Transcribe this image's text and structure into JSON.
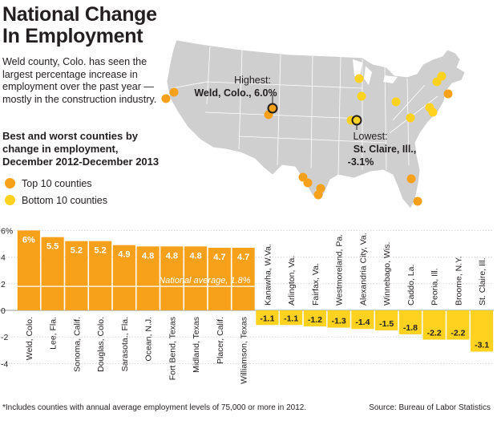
{
  "header": {
    "title_line1": "National Change",
    "title_line2": "In Employment",
    "intro": "Weld county, Colo. has seen the largest percentage increase in employment over the past year —mostly in the construction industry.",
    "subhead": "Best and worst counties by change in employment, December 2012-December 2013"
  },
  "legend": {
    "top_label": "Top 10 counties",
    "bottom_label": "Bottom 10 counties"
  },
  "map": {
    "highest_label": "Highest:",
    "highest_name": "Weld, Colo., 6.0%",
    "lowest_label": "Lowest:",
    "lowest_name": "St. Claire, Ill.,",
    "lowest_value": "-3.1%"
  },
  "colors": {
    "top": "#f7a11a",
    "bottom": "#ffd21f",
    "map_land": "#cfcfcf",
    "map_border": "#ffffff",
    "bar_text": "#ffffff"
  },
  "chart_data": {
    "type": "bar",
    "categories": [
      "Weld, Colo.",
      "Lee, Fla.",
      "Sonoma, Calif.",
      "Douglas, Colo.",
      "Sarasota., Fla.",
      "Ocean, N.J.",
      "Fort Bend, Texas",
      "Midland, Texas",
      "Placer, Calif.",
      "Williamson, Texas",
      "Kanawha, W.Va.",
      "Arlington, Va.",
      "Fairfax, Va.",
      "Westmoreland, Pa.",
      "Alexandria City, Va.",
      "Winnebago, Wis.",
      "Caddo, La.",
      "Peoria, Ill.",
      "Broome, N.Y.",
      "St. Claire, Ill."
    ],
    "values": [
      6.0,
      5.5,
      5.2,
      5.2,
      4.9,
      4.8,
      4.8,
      4.8,
      4.7,
      4.7,
      -1.1,
      -1.1,
      -1.2,
      -1.3,
      -1.4,
      -1.5,
      -1.8,
      -2.2,
      -2.2,
      -3.1
    ],
    "value_labels": [
      "6%",
      "5.5",
      "5.2",
      "5.2",
      "4.9",
      "4.8",
      "4.8",
      "4.8",
      "4.7",
      "4.7",
      "-1.1",
      "-1.1",
      "-1.2",
      "-1.3",
      "-1.4",
      "-1.5",
      "-1.8",
      "-2.2",
      "-2.2",
      "-3.1"
    ],
    "yticks": [
      6,
      4,
      2,
      0,
      -2,
      -4
    ],
    "ytick_labels": [
      "6%",
      "4",
      "2",
      "0",
      "-2",
      "-4"
    ],
    "ylim": [
      -4.3,
      6.5
    ],
    "reference_line": {
      "value": 1.8,
      "label": "National average, 1.8%"
    }
  },
  "footnote": "*Includes counties with annual average employment levels of 75,000 or more in 2012.",
  "source": "Source: Bureau of Labor Statistics"
}
